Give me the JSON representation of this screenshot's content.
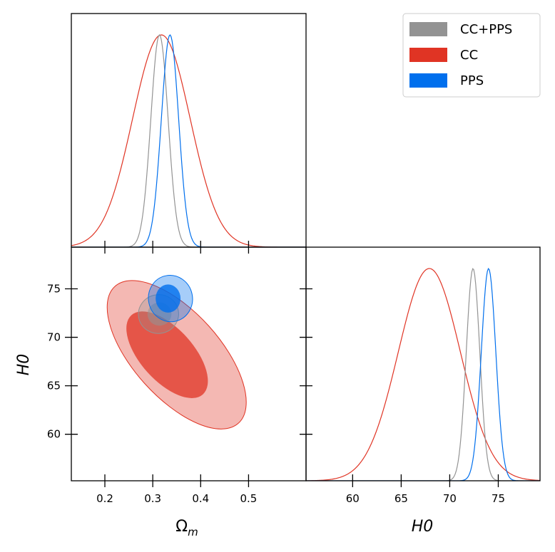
{
  "chart_data": {
    "type": "corner",
    "legend": {
      "placement": "top-right",
      "entries": [
        {
          "name": "CC+PPS",
          "color": "#939393"
        },
        {
          "name": "CC",
          "color": "#e03424"
        },
        {
          "name": "PPS",
          "color": "#006fed"
        }
      ]
    },
    "parameters": [
      {
        "key": "Om",
        "label_main": "Ω",
        "label_sub": "m",
        "ticks": [
          "0.2",
          "0.3",
          "0.4",
          "0.5"
        ],
        "tick_values": [
          0.2,
          0.3,
          0.4,
          0.5
        ],
        "range": [
          0.13,
          0.62
        ]
      },
      {
        "key": "H0",
        "label": "H0",
        "ticks": [
          "60",
          "65",
          "70",
          "75"
        ],
        "tick_values": [
          60,
          65,
          70,
          75
        ],
        "range": [
          55.2,
          79.3
        ]
      }
    ],
    "series": [
      {
        "name": "CC+PPS",
        "color": "#939393",
        "Om_mean": 0.314,
        "Om_sigma": 0.018,
        "H0_mean": 72.4,
        "H0_sigma": 0.7,
        "contours": {
          "inner": [
            0.314,
            72.4,
            0.025,
            1.2,
            0.0
          ],
          "outer": [
            0.312,
            72.4,
            0.042,
            2.0,
            -10
          ]
        }
      },
      {
        "name": "CC",
        "color": "#e03424",
        "Om_mean": 0.318,
        "Om_sigma": 0.06,
        "H0_mean": 67.9,
        "H0_sigma": 3.2,
        "contours": {
          "inner": [
            0.33,
            68.2,
            0.055,
            5.5,
            -42
          ],
          "outer": [
            0.35,
            68.2,
            0.09,
            9.5,
            -42
          ]
        }
      },
      {
        "name": "PPS",
        "color": "#006fed",
        "Om_mean": 0.336,
        "Om_sigma": 0.018,
        "H0_mean": 74.0,
        "H0_sigma": 0.75,
        "contours": {
          "inner": [
            0.332,
            74.0,
            0.026,
            1.45,
            0.0
          ],
          "outer": [
            0.337,
            74.0,
            0.046,
            2.4,
            -12
          ]
        }
      }
    ]
  }
}
